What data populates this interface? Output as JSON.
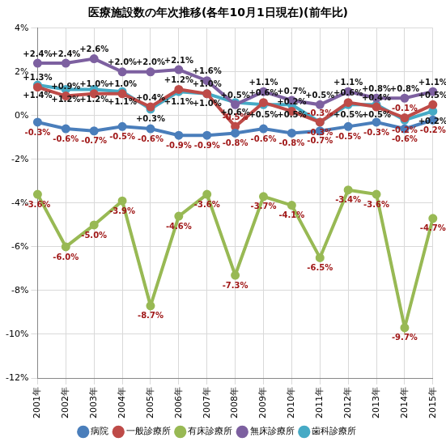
{
  "chart_data": {
    "type": "line",
    "title": "医療施設数の年次推移(各年10月1日現在)(前年比)",
    "categories": [
      "2001年",
      "2002年",
      "2003年",
      "2004年",
      "2005年",
      "2006年",
      "2007年",
      "2008年",
      "2009年",
      "2010年",
      "2011年",
      "2012年",
      "2013年",
      "2014年",
      "2015年"
    ],
    "series": [
      {
        "name": "病院",
        "color": "#4a7ebb",
        "values": [
          -0.3,
          -0.6,
          -0.7,
          -0.5,
          -0.6,
          -0.9,
          -0.9,
          -0.8,
          -0.6,
          -0.8,
          -0.7,
          -0.5,
          -0.3,
          -0.6,
          -0.2
        ],
        "value_labels": [
          "-0.3%",
          "-0.6%",
          "-0.7%",
          "-0.5%",
          "-0.6%",
          "-0.9%",
          "-0.9%",
          "-0.8%",
          "-0.6%",
          "-0.8%",
          "-0.7%",
          "-0.5%",
          "-0.3%",
          "-0.6%",
          "-0.2%"
        ]
      },
      {
        "name": "一般診療所",
        "color": "#be4b48",
        "values": [
          1.3,
          0.9,
          1.0,
          1.0,
          0.4,
          1.2,
          1.0,
          -0.5,
          0.6,
          0.2,
          -0.3,
          0.6,
          0.4,
          -0.1,
          0.5
        ],
        "value_labels": [
          "+1.3%",
          "+0.9%",
          "+1.0%",
          "+1.0%",
          "+0.4%",
          "+1.2%",
          "+1.0%",
          "-0.5%",
          "+0.6%",
          "+0.2%",
          "-0.3%",
          "+0.6%",
          "+0.4%",
          "-0.1%",
          "+0.5%"
        ]
      },
      {
        "name": "有床診療所",
        "color": "#98b954",
        "values": [
          -3.6,
          -6.0,
          -5.0,
          -3.9,
          -8.7,
          -4.6,
          -3.6,
          -7.3,
          -3.7,
          -4.1,
          -6.5,
          -3.4,
          -3.6,
          -9.7,
          -4.7
        ],
        "value_labels": [
          "-3.6%",
          "-6.0%",
          "-5.0%",
          "-3.9%",
          "-8.7%",
          "-4.6%",
          "-3.6%",
          "-7.3%",
          "-3.7%",
          "-4.1%",
          "-6.5%",
          "-3.4%",
          "-3.6%",
          "-9.7%",
          "-4.7%"
        ]
      },
      {
        "name": "無床診療所",
        "color": "#7d60a0",
        "values": [
          2.4,
          2.4,
          2.6,
          2.0,
          2.0,
          2.1,
          1.6,
          0.5,
          1.1,
          0.7,
          0.5,
          1.1,
          0.8,
          0.8,
          1.1
        ],
        "value_labels": [
          "+2.4%",
          "+2.4%",
          "+2.6%",
          "+2.0%",
          "+2.0%",
          "+2.1%",
          "+1.6%",
          "+0.5%",
          "+1.1%",
          "+0.7%",
          "+0.5%",
          "+1.1%",
          "+0.8%",
          "+0.8%",
          "+1.1%"
        ]
      },
      {
        "name": "歯科診療所",
        "color": "#46aac5",
        "values": [
          1.4,
          1.2,
          1.2,
          1.1,
          0.3,
          1.1,
          1.0,
          0.6,
          0.5,
          0.5,
          -0.3,
          0.5,
          0.5,
          -0.2,
          0.2
        ],
        "value_labels": [
          "+1.4%",
          "+1.2%",
          "+1.2%",
          "+1.1%",
          "+0.3%",
          "+1.1%",
          "+1.0%",
          "+0.6%",
          "+0.5%",
          "+0.5%",
          "-0.3%",
          "+0.5%",
          "+0.5%",
          "-0.2%",
          "+0.2%"
        ]
      }
    ],
    "ylim": [
      -12,
      4
    ],
    "yticks": [
      {
        "value": -12,
        "label": "-12%"
      },
      {
        "value": -10,
        "label": "-10%"
      },
      {
        "value": -8,
        "label": "-8%"
      },
      {
        "value": -6,
        "label": "-6%"
      },
      {
        "value": -4,
        "label": "-4%"
      },
      {
        "value": -2,
        "label": "-2%"
      },
      {
        "value": 0,
        "label": "0%"
      },
      {
        "value": 2,
        "label": "2%"
      },
      {
        "value": 4,
        "label": "4%"
      }
    ],
    "grid": true,
    "legend": "bottom",
    "data_labels": true,
    "marker": "circle"
  }
}
